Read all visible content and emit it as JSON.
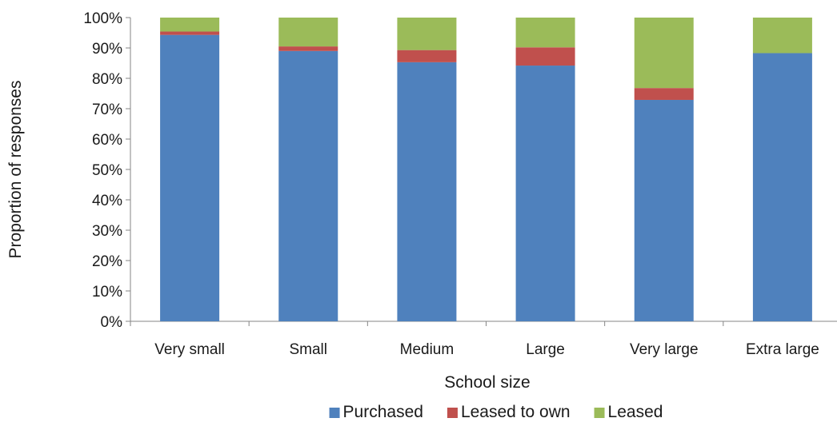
{
  "chart_data": {
    "type": "bar",
    "stacked": true,
    "categories": [
      "Very small",
      "Small",
      "Medium",
      "Large",
      "Very large",
      "Extra large"
    ],
    "series": [
      {
        "name": "Purchased",
        "color": "#4F81BD",
        "values": [
          94.3,
          89.0,
          85.3,
          84.2,
          72.9,
          88.3
        ]
      },
      {
        "name": "Leased to own",
        "color": "#C0504D",
        "values": [
          1.1,
          1.5,
          4.0,
          6.0,
          3.9,
          0.0
        ]
      },
      {
        "name": "Leased",
        "color": "#9BBB59",
        "values": [
          4.6,
          9.5,
          10.7,
          9.8,
          23.2,
          11.7
        ]
      }
    ],
    "xlabel": "School size",
    "ylabel": "Proportion of responses",
    "ylim": [
      0,
      100
    ],
    "y_ticks": [
      0,
      10,
      20,
      30,
      40,
      50,
      60,
      70,
      80,
      90,
      100
    ],
    "y_tick_suffix": "%",
    "grid": false,
    "legend_position": "bottom"
  }
}
